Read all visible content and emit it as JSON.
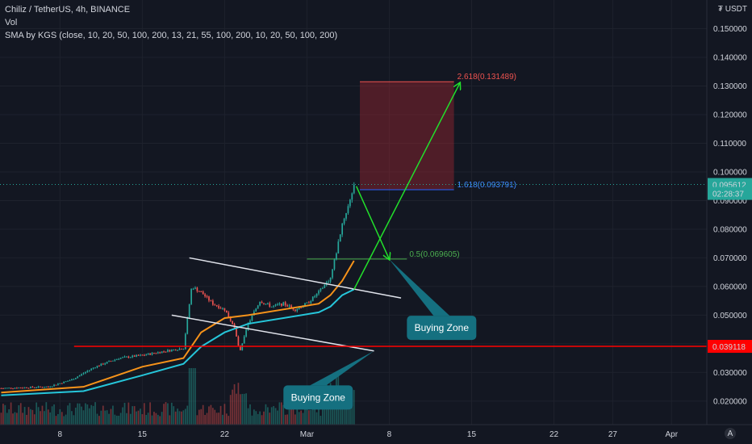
{
  "header": {
    "symbol": "Chiliz / TetherUS, 4h, BINANCE",
    "vol": "Vol",
    "sma": "SMA by KGS (close, 10, 20, 50, 100, 200, 13, 21, 55, 100, 200, 10, 20, 50, 100, 200)"
  },
  "axis": {
    "unit": "USDT",
    "currency_glyph": "₮"
  },
  "colors": {
    "background": "#131722",
    "up": "#26a69a",
    "down": "#ef5350",
    "sma_fast": "#f7931a",
    "sma_slow": "#26c6da",
    "channel": "#e0e3eb",
    "arrow": "#22e02b",
    "support": "#ff0000",
    "fib_top": "#ef5350",
    "fib_mid": "#2962ff",
    "fib_half": "#4caf50",
    "callout": "#157080"
  },
  "chart_data": {
    "type": "candlestick",
    "price_ylim": [
      0.0118,
      0.16
    ],
    "y_ticks": [
      "0.020000",
      "0.030000",
      "0.040000",
      "0.050000",
      "0.060000",
      "0.070000",
      "0.080000",
      "0.090000",
      "0.100000",
      "0.110000",
      "0.120000",
      "0.130000",
      "0.140000",
      "0.150000"
    ],
    "x_ticks": [
      {
        "label": "8",
        "day": 8
      },
      {
        "label": "15",
        "day": 15
      },
      {
        "label": "22",
        "day": 22
      },
      {
        "label": "Mar",
        "day": 29
      },
      {
        "label": "8",
        "day": 36
      },
      {
        "label": "15",
        "day": 43
      },
      {
        "label": "22",
        "day": 50
      },
      {
        "label": "27",
        "day": 55
      },
      {
        "label": "Apr",
        "day": 60
      }
    ],
    "x_range_days": [
      2.9,
      63.0
    ],
    "anchors": [
      {
        "day": 3,
        "price": 0.0245
      },
      {
        "day": 7,
        "price": 0.025
      },
      {
        "day": 9,
        "price": 0.0275
      },
      {
        "day": 11,
        "price": 0.032
      },
      {
        "day": 13,
        "price": 0.035
      },
      {
        "day": 15,
        "price": 0.036
      },
      {
        "day": 17,
        "price": 0.0375
      },
      {
        "day": 18.5,
        "price": 0.0385
      },
      {
        "day": 19.2,
        "price": 0.06
      },
      {
        "day": 20,
        "price": 0.058
      },
      {
        "day": 21,
        "price": 0.054
      },
      {
        "day": 22,
        "price": 0.052
      },
      {
        "day": 22.8,
        "price": 0.046
      },
      {
        "day": 23.3,
        "price": 0.037
      },
      {
        "day": 24,
        "price": 0.047
      },
      {
        "day": 25,
        "price": 0.055
      },
      {
        "day": 26,
        "price": 0.053
      },
      {
        "day": 27,
        "price": 0.054
      },
      {
        "day": 28,
        "price": 0.052
      },
      {
        "day": 29,
        "price": 0.054
      },
      {
        "day": 30,
        "price": 0.058
      },
      {
        "day": 31,
        "price": 0.063
      },
      {
        "day": 31.5,
        "price": 0.072
      },
      {
        "day": 32,
        "price": 0.082
      },
      {
        "day": 32.5,
        "price": 0.088
      },
      {
        "day": 33,
        "price": 0.0956
      }
    ],
    "series": [
      {
        "name": "SMA",
        "color_key": "sma_fast",
        "points": [
          [
            3,
            0.023
          ],
          [
            10,
            0.025
          ],
          [
            15,
            0.032
          ],
          [
            18.5,
            0.035
          ],
          [
            20,
            0.044
          ],
          [
            22,
            0.049
          ],
          [
            24,
            0.05
          ],
          [
            27,
            0.052
          ],
          [
            30,
            0.054
          ],
          [
            31,
            0.057
          ],
          [
            32,
            0.062
          ],
          [
            33,
            0.069
          ]
        ]
      },
      {
        "name": "SMA",
        "color_key": "sma_slow",
        "points": [
          [
            3,
            0.022
          ],
          [
            10,
            0.0235
          ],
          [
            15,
            0.029
          ],
          [
            18.5,
            0.033
          ],
          [
            20,
            0.039
          ],
          [
            22,
            0.044
          ],
          [
            24,
            0.047
          ],
          [
            27,
            0.049
          ],
          [
            30,
            0.051
          ],
          [
            31,
            0.053
          ],
          [
            32,
            0.057
          ],
          [
            33,
            0.059
          ]
        ]
      }
    ],
    "volume_peak": 1,
    "fib_levels": [
      {
        "label": "2.618(0.131489)",
        "value": 0.131489,
        "color_key": "fib_top"
      },
      {
        "label": "1.618(0.093791)",
        "value": 0.093791,
        "color_key": "fib_mid"
      },
      {
        "label": "0.5(0.069605)",
        "value": 0.069605,
        "color_key": "fib_half"
      }
    ],
    "fib_zone_days": [
      33.5,
      41.5
    ],
    "fib_half_days": [
      29,
      37.5
    ],
    "channel_upper": [
      [
        19.0,
        0.07
      ],
      [
        37.0,
        0.056
      ]
    ],
    "channel_lower": [
      [
        17.5,
        0.05
      ],
      [
        34.7,
        0.0375
      ]
    ],
    "support_value": 0.039118,
    "arrows": [
      {
        "from": [
          33.2,
          0.095
        ],
        "to": [
          36.0,
          0.0695
        ]
      },
      {
        "from": [
          33.0,
          0.059
        ],
        "to": [
          42.0,
          0.131
        ]
      }
    ],
    "price_labels": [
      {
        "text": "0.095612",
        "value": 0.095612,
        "bg": "#26a69a"
      },
      {
        "text": "02:28:37",
        "value": 0.0925,
        "bg": "#26a69a"
      },
      {
        "text": "0.039118",
        "value": 0.039118,
        "bg": "#ff0000"
      }
    ],
    "callouts": [
      {
        "text": "Buying Zone",
        "box_day": 37.5,
        "box_price": 0.0498,
        "tip_day": 36.0,
        "tip_price": 0.0695
      },
      {
        "text": "Buying Zone",
        "box_day": 27.0,
        "box_price": 0.0255,
        "tip_day": 34.7,
        "tip_price": 0.0375
      }
    ]
  }
}
